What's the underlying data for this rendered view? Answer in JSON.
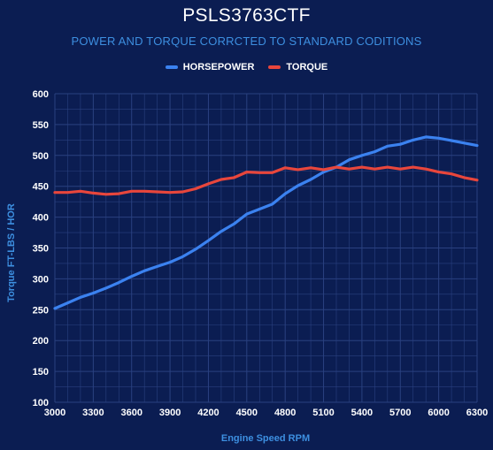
{
  "chart_data": {
    "type": "line",
    "title": "PSLS3763CTF",
    "subtitle": "POWER AND TORQUE CORRCTED TO STANDARD CODITIONS",
    "xlabel": "Engine Speed RPM",
    "ylabel": "Torque FT-LBS / HOR",
    "xlim": [
      3000,
      6300
    ],
    "ylim": [
      100,
      600
    ],
    "x_ticks": [
      3000,
      3300,
      3600,
      3900,
      4200,
      4500,
      4800,
      5100,
      5400,
      5700,
      6000,
      6300
    ],
    "y_ticks": [
      100,
      150,
      200,
      250,
      300,
      350,
      400,
      450,
      500,
      550,
      600
    ],
    "legend_position": "top-center",
    "grid": true,
    "series": [
      {
        "name": "HORSEPOWER",
        "color": "#3b82f0",
        "x": [
          3000,
          3100,
          3200,
          3300,
          3400,
          3500,
          3600,
          3700,
          3800,
          3900,
          4000,
          4100,
          4200,
          4300,
          4400,
          4500,
          4600,
          4700,
          4800,
          4900,
          5000,
          5100,
          5200,
          5300,
          5400,
          5500,
          5600,
          5700,
          5800,
          5900,
          6000,
          6100,
          6200,
          6300
        ],
        "values": [
          252,
          261,
          270,
          277,
          285,
          294,
          304,
          313,
          320,
          327,
          336,
          348,
          362,
          377,
          389,
          405,
          413,
          421,
          438,
          451,
          461,
          473,
          481,
          493,
          500,
          506,
          515,
          518,
          525,
          530,
          528,
          524,
          520,
          516
        ]
      },
      {
        "name": "TORQUE",
        "color": "#e8463c",
        "x": [
          3000,
          3100,
          3200,
          3300,
          3400,
          3500,
          3600,
          3700,
          3800,
          3900,
          4000,
          4100,
          4200,
          4300,
          4400,
          4500,
          4600,
          4700,
          4800,
          4900,
          5000,
          5100,
          5200,
          5300,
          5400,
          5500,
          5600,
          5700,
          5800,
          5900,
          6000,
          6100,
          6200,
          6300
        ],
        "values": [
          440,
          440,
          442,
          439,
          437,
          438,
          442,
          442,
          441,
          440,
          441,
          446,
          454,
          461,
          464,
          473,
          472,
          472,
          480,
          477,
          480,
          477,
          481,
          478,
          481,
          478,
          481,
          478,
          481,
          478,
          473,
          470,
          464,
          460
        ]
      }
    ]
  },
  "colors": {
    "background": "#0b1d52",
    "grid": "#2a4180",
    "title": "#ffffff",
    "accent_text": "#3d8fe0"
  }
}
